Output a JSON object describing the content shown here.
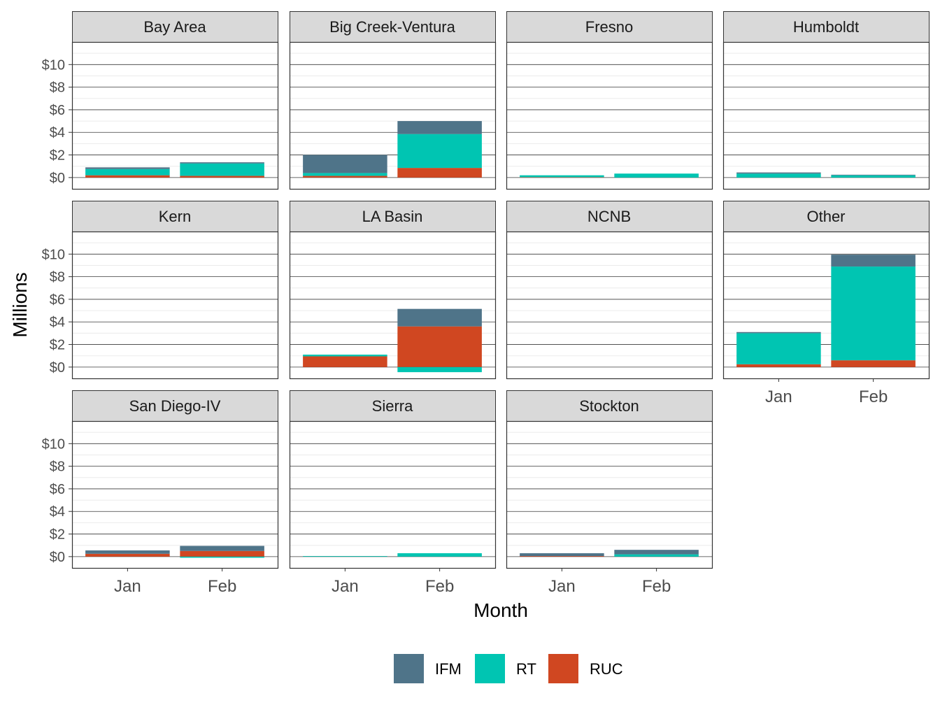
{
  "chart_data": {
    "type": "bar",
    "stacked": true,
    "faceted": true,
    "xlabel": "Month",
    "ylabel": "Millions",
    "categories": [
      "Jan",
      "Feb"
    ],
    "y_ticks": [
      "$0",
      "$2",
      "$4",
      "$6",
      "$8",
      "$10"
    ],
    "y_tick_values": [
      0,
      2,
      4,
      6,
      8,
      10
    ],
    "ylim": [
      -1,
      12
    ],
    "grid": true,
    "legend_position": "bottom",
    "series_names": [
      "IFM",
      "RT",
      "RUC"
    ],
    "colors": {
      "IFM": "#4f7489",
      "RT": "#00c5b2",
      "RUC": "#d04721"
    },
    "panels": [
      {
        "title": "Bay Area",
        "series": [
          {
            "name": "RUC",
            "values": [
              0.2,
              0.15
            ]
          },
          {
            "name": "RT",
            "values": [
              0.55,
              1.1
            ]
          },
          {
            "name": "IFM",
            "values": [
              0.15,
              0.1
            ]
          }
        ]
      },
      {
        "title": "Big Creek-Ventura",
        "series": [
          {
            "name": "RUC",
            "values": [
              0.15,
              0.85
            ]
          },
          {
            "name": "RT",
            "values": [
              0.25,
              3.0
            ]
          },
          {
            "name": "IFM",
            "values": [
              1.6,
              1.15
            ]
          }
        ]
      },
      {
        "title": "Fresno",
        "series": [
          {
            "name": "RUC",
            "values": [
              0.03,
              0.0
            ]
          },
          {
            "name": "RT",
            "values": [
              0.17,
              0.35
            ]
          },
          {
            "name": "IFM",
            "values": [
              0.0,
              0.0
            ]
          }
        ]
      },
      {
        "title": "Humboldt",
        "series": [
          {
            "name": "RUC",
            "values": [
              0.0,
              0.0
            ]
          },
          {
            "name": "RT",
            "values": [
              0.35,
              0.2
            ]
          },
          {
            "name": "IFM",
            "values": [
              0.1,
              0.05
            ]
          }
        ]
      },
      {
        "title": "Kern",
        "series": [
          {
            "name": "RUC",
            "values": [
              0,
              0
            ]
          },
          {
            "name": "RT",
            "values": [
              0,
              0
            ]
          },
          {
            "name": "IFM",
            "values": [
              0,
              0
            ]
          }
        ]
      },
      {
        "title": "LA Basin",
        "series": [
          {
            "name": "RUC",
            "values": [
              0.95,
              3.6
            ]
          },
          {
            "name": "RT",
            "values": [
              0.15,
              -0.45
            ]
          },
          {
            "name": "IFM",
            "values": [
              0.0,
              1.55
            ]
          }
        ]
      },
      {
        "title": "NCNB",
        "series": [
          {
            "name": "RUC",
            "values": [
              0,
              0
            ]
          },
          {
            "name": "RT",
            "values": [
              0,
              0
            ]
          },
          {
            "name": "IFM",
            "values": [
              0,
              0
            ]
          }
        ]
      },
      {
        "title": "Other",
        "series": [
          {
            "name": "RUC",
            "values": [
              0.25,
              0.6
            ]
          },
          {
            "name": "RT",
            "values": [
              2.75,
              8.3
            ]
          },
          {
            "name": "IFM",
            "values": [
              0.1,
              1.05
            ]
          }
        ]
      },
      {
        "title": "San Diego-IV",
        "series": [
          {
            "name": "RUC",
            "values": [
              0.25,
              0.5
            ]
          },
          {
            "name": "RT",
            "values": [
              0.0,
              -0.1
            ]
          },
          {
            "name": "IFM",
            "values": [
              0.3,
              0.45
            ]
          }
        ]
      },
      {
        "title": "Sierra",
        "series": [
          {
            "name": "RUC",
            "values": [
              0.0,
              0.0
            ]
          },
          {
            "name": "RT",
            "values": [
              0.05,
              0.3
            ]
          },
          {
            "name": "IFM",
            "values": [
              0.0,
              0.0
            ]
          }
        ]
      },
      {
        "title": "Stockton",
        "series": [
          {
            "name": "RUC",
            "values": [
              0.05,
              0.0
            ]
          },
          {
            "name": "RT",
            "values": [
              0.0,
              0.2
            ]
          },
          {
            "name": "IFM",
            "values": [
              0.25,
              0.4
            ]
          }
        ]
      }
    ]
  }
}
